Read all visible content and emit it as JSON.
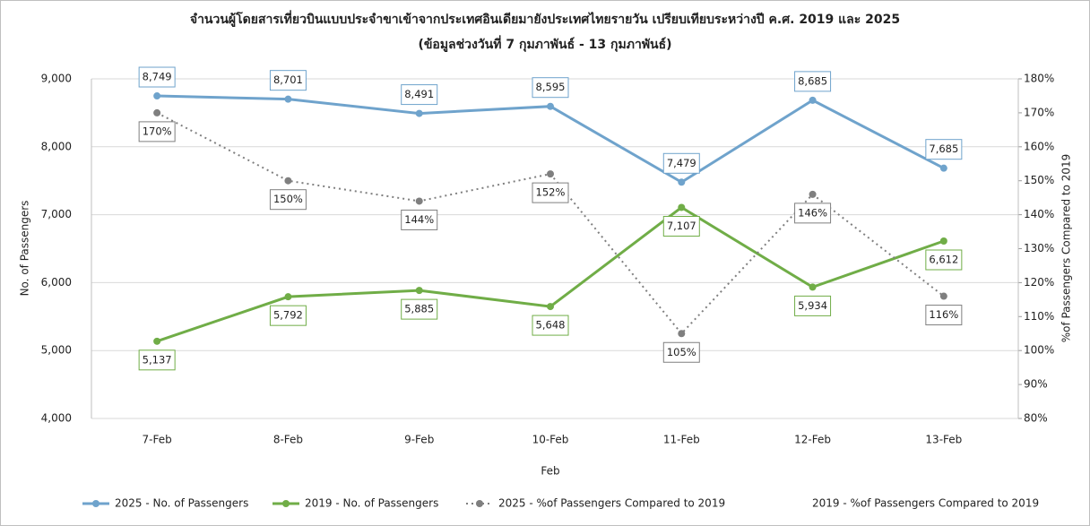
{
  "chart_data": {
    "type": "line",
    "title": "จำนวนผู้โดยสารเที่ยวบินแบบประจำขาเข้าจากประเทศอินเดียมายังประเทศไทยรายวัน เปรียบเทียบระหว่างปี ค.ศ. 2019 และ 2025",
    "subtitle": "(ข้อมูลช่วงวันที่ 7 กุมภาพันธ์ - 13 กุมภาพันธ์)",
    "x_label": "Feb",
    "y_label": "No. of Passengers",
    "y2_label": "%of Passengers Compared to 2019",
    "categories": [
      "7-Feb",
      "8-Feb",
      "9-Feb",
      "10-Feb",
      "11-Feb",
      "12-Feb",
      "13-Feb"
    ],
    "series": [
      {
        "name": "2025 - No. of Passengers",
        "color": "#6fa3cc",
        "style": "solid",
        "label_position": "above",
        "values": [
          8749,
          8701,
          8491,
          8595,
          7479,
          8685,
          7685
        ],
        "value_labels": [
          "8,749",
          "8,701",
          "8,491",
          "8,595",
          "7,479",
          "8,685",
          "7,685"
        ]
      },
      {
        "name": "2019 - No. of Passengers",
        "color": "#70ad47",
        "style": "solid",
        "label_position": "below",
        "values": [
          5137,
          5792,
          5885,
          5648,
          7107,
          5934,
          6612
        ],
        "value_labels": [
          "5,137",
          "5,792",
          "5,885",
          "5,648",
          "7,107",
          "5,934",
          "6,612"
        ]
      },
      {
        "name": "2025 - %of Passengers Compared to 2019",
        "color": "#7f7f7f",
        "style": "dotted",
        "axis": "y2",
        "label_position": "below",
        "values": [
          170,
          150,
          144,
          152,
          105,
          146,
          116
        ],
        "value_labels": [
          "170%",
          "150%",
          "144%",
          "152%",
          "105%",
          "146%",
          "116%"
        ]
      },
      {
        "name": "2019 - %of Passengers Compared to 2019",
        "color": "#ffffff",
        "style": "none",
        "axis": "y2",
        "values": [
          null,
          null,
          null,
          null,
          null,
          null,
          null
        ]
      }
    ],
    "ylim": [
      4000,
      9000
    ],
    "yticks": [
      {
        "value": 4000,
        "label": "4,000"
      },
      {
        "value": 5000,
        "label": "5,000"
      },
      {
        "value": 6000,
        "label": "6,000"
      },
      {
        "value": 7000,
        "label": "7,000"
      },
      {
        "value": 8000,
        "label": "8,000"
      },
      {
        "value": 9000,
        "label": "9,000"
      }
    ],
    "y2lim": [
      80,
      180
    ],
    "y2ticks": [
      {
        "value": 80,
        "label": "80%"
      },
      {
        "value": 90,
        "label": "90%"
      },
      {
        "value": 100,
        "label": "100%"
      },
      {
        "value": 110,
        "label": "110%"
      },
      {
        "value": 120,
        "label": "120%"
      },
      {
        "value": 130,
        "label": "130%"
      },
      {
        "value": 140,
        "label": "140%"
      },
      {
        "value": 150,
        "label": "150%"
      },
      {
        "value": 160,
        "label": "160%"
      },
      {
        "value": 170,
        "label": "170%"
      },
      {
        "value": 180,
        "label": "180%"
      }
    ],
    "grid": true,
    "legend": "bottom"
  }
}
